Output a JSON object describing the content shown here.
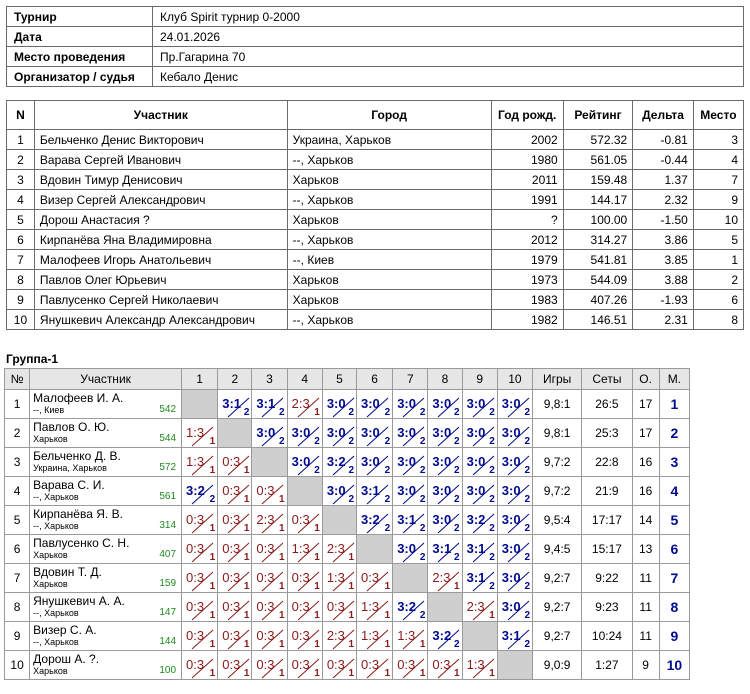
{
  "info": [
    {
      "key": "Турнир",
      "value": "Клуб Spirit турнир 0-2000"
    },
    {
      "key": "Дата",
      "value": "24.01.2026"
    },
    {
      "key": "Место проведения",
      "value": "Пр.Гагарина 70"
    },
    {
      "key": "Организатор / судья",
      "value": "Кебало Денис"
    }
  ],
  "participants_headers": [
    "N",
    "Участник",
    "Город",
    "Год рожд.",
    "Рейтинг",
    "Дельта",
    "Место"
  ],
  "participants": [
    [
      "1",
      "Бельченко Денис Викторович",
      "Украина, Харьков",
      "2002",
      "572.32",
      "-0.81",
      "3"
    ],
    [
      "2",
      "Варава Сергей Иванович",
      "--, Харьков",
      "1980",
      "561.05",
      "-0.44",
      "4"
    ],
    [
      "3",
      "Вдовин Тимур Денисович",
      "Харьков",
      "2011",
      "159.48",
      "1.37",
      "7"
    ],
    [
      "4",
      "Визер Сергей Александрович",
      "--, Харьков",
      "1991",
      "144.17",
      "2.32",
      "9"
    ],
    [
      "5",
      "Дорош Анастасия ?",
      "Харьков",
      "?",
      "100.00",
      "-1.50",
      "10"
    ],
    [
      "6",
      "Кирпанёва Яна Владимировна",
      "--, Харьков",
      "2012",
      "314.27",
      "3.86",
      "5"
    ],
    [
      "7",
      "Малофеев Игорь Анатольевич",
      "--, Киев",
      "1979",
      "541.81",
      "3.85",
      "1"
    ],
    [
      "8",
      "Павлов Олег Юрьевич",
      "Харьков",
      "1973",
      "544.09",
      "3.88",
      "2"
    ],
    [
      "9",
      "Павлусенко Сергей Николаевич",
      "Харьков",
      "1983",
      "407.26",
      "-1.93",
      "6"
    ],
    [
      "10",
      "Янушкевич Александр Александрович",
      "--, Харьков",
      "1982",
      "146.51",
      "2.31",
      "8"
    ]
  ],
  "group_title": "Группа-1",
  "cross_headers": [
    "№",
    "Участник",
    "1",
    "2",
    "3",
    "4",
    "5",
    "6",
    "7",
    "8",
    "9",
    "10",
    "Игры",
    "Сеты",
    "О.",
    "М."
  ],
  "cross_rows": [
    {
      "n": "1",
      "name": "Малофеев И. А.",
      "city": "--, Киев",
      "rating": "542",
      "cells": [
        "X",
        "3:1",
        "3:1",
        "2:3",
        "3:0",
        "3:0",
        "3:0",
        "3:0",
        "3:0",
        "3:0"
      ],
      "games": "9,8:1",
      "sets": "26:5",
      "points": "17",
      "place": "1"
    },
    {
      "n": "2",
      "name": "Павлов О. Ю.",
      "city": "Харьков",
      "rating": "544",
      "cells": [
        "1:3",
        "X",
        "3:0",
        "3:0",
        "3:0",
        "3:0",
        "3:0",
        "3:0",
        "3:0",
        "3:0"
      ],
      "games": "9,8:1",
      "sets": "25:3",
      "points": "17",
      "place": "2"
    },
    {
      "n": "3",
      "name": "Бельченко Д. В.",
      "city": "Украина, Харьков",
      "rating": "572",
      "cells": [
        "1:3",
        "0:3",
        "X",
        "3:0",
        "3:2",
        "3:0",
        "3:0",
        "3:0",
        "3:0",
        "3:0"
      ],
      "games": "9,7:2",
      "sets": "22:8",
      "points": "16",
      "place": "3"
    },
    {
      "n": "4",
      "name": "Варава С. И.",
      "city": "--, Харьков",
      "rating": "561",
      "cells": [
        "3:2",
        "0:3",
        "0:3",
        "X",
        "3:0",
        "3:1",
        "3:0",
        "3:0",
        "3:0",
        "3:0"
      ],
      "games": "9,7:2",
      "sets": "21:9",
      "points": "16",
      "place": "4"
    },
    {
      "n": "5",
      "name": "Кирпанёва Я. В.",
      "city": "--, Харьков",
      "rating": "314",
      "cells": [
        "0:3",
        "0:3",
        "2:3",
        "0:3",
        "X",
        "3:2",
        "3:1",
        "3:0",
        "3:2",
        "3:0"
      ],
      "games": "9,5:4",
      "sets": "17:17",
      "points": "14",
      "place": "5"
    },
    {
      "n": "6",
      "name": "Павлусенко С. Н.",
      "city": "Харьков",
      "rating": "407",
      "cells": [
        "0:3",
        "0:3",
        "0:3",
        "1:3",
        "2:3",
        "X",
        "3:0",
        "3:1",
        "3:1",
        "3:0"
      ],
      "games": "9,4:5",
      "sets": "15:17",
      "points": "13",
      "place": "6"
    },
    {
      "n": "7",
      "name": "Вдовин Т. Д.",
      "city": "Харьков",
      "rating": "159",
      "cells": [
        "0:3",
        "0:3",
        "0:3",
        "0:3",
        "1:3",
        "0:3",
        "X",
        "2:3",
        "3:1",
        "3:0"
      ],
      "games": "9,2:7",
      "sets": "9:22",
      "points": "11",
      "place": "7"
    },
    {
      "n": "8",
      "name": "Янушкевич А. А.",
      "city": "--, Харьков",
      "rating": "147",
      "cells": [
        "0:3",
        "0:3",
        "0:3",
        "0:3",
        "0:3",
        "1:3",
        "3:2",
        "X",
        "2:3",
        "3:0"
      ],
      "games": "9,2:7",
      "sets": "9:23",
      "points": "11",
      "place": "8"
    },
    {
      "n": "9",
      "name": "Визер С. А.",
      "city": "--, Харьков",
      "rating": "144",
      "cells": [
        "0:3",
        "0:3",
        "0:3",
        "0:3",
        "2:3",
        "1:3",
        "1:3",
        "3:2",
        "X",
        "3:1"
      ],
      "games": "9,2:7",
      "sets": "10:24",
      "points": "11",
      "place": "9"
    },
    {
      "n": "10",
      "name": "Дорош А. ?.",
      "city": "Харьков",
      "rating": "100",
      "cells": [
        "0:3",
        "0:3",
        "0:3",
        "0:3",
        "0:3",
        "0:3",
        "0:3",
        "0:3",
        "1:3",
        "X"
      ],
      "games": "9,0:9",
      "sets": "1:27",
      "points": "9",
      "place": "10"
    }
  ]
}
